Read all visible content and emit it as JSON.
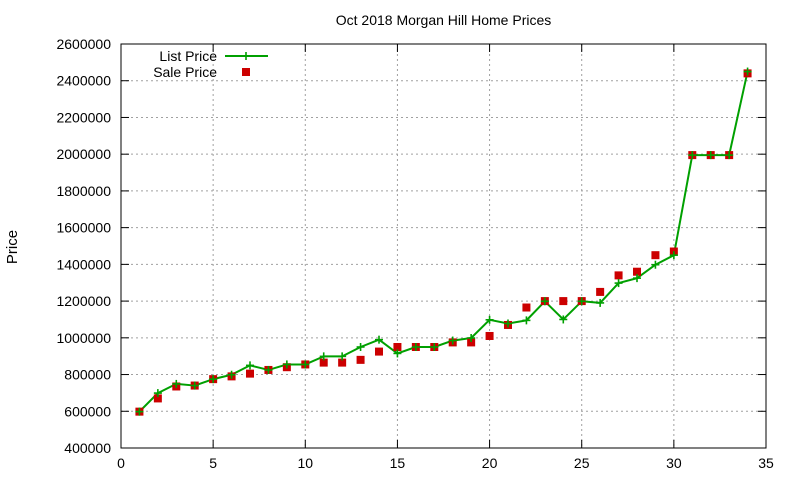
{
  "chart_data": {
    "type": "line",
    "title": "Oct 2018 Morgan Hill Home Prices",
    "xlabel": "",
    "ylabel": "Price",
    "xlim": [
      0,
      35
    ],
    "ylim": [
      400000,
      2600000
    ],
    "xticks": [
      0,
      5,
      10,
      15,
      20,
      25,
      30,
      35
    ],
    "yticks": [
      400000,
      600000,
      800000,
      1000000,
      1200000,
      1400000,
      1600000,
      1800000,
      2000000,
      2200000,
      2400000,
      2600000
    ],
    "grid": true,
    "legend_position": "top-left",
    "colors": {
      "list": "#00a000",
      "sale": "#cc0000"
    },
    "series": [
      {
        "name": "List Price",
        "style": "line-points",
        "x": [
          1,
          2,
          3,
          4,
          5,
          6,
          7,
          8,
          9,
          10,
          11,
          12,
          13,
          14,
          15,
          16,
          17,
          18,
          19,
          20,
          21,
          22,
          23,
          24,
          25,
          26,
          27,
          28,
          29,
          30,
          31,
          32,
          33,
          34
        ],
        "y": [
          598000,
          699000,
          749000,
          740000,
          775000,
          799000,
          850000,
          825000,
          855000,
          855000,
          899000,
          899000,
          950000,
          990000,
          915000,
          950000,
          950000,
          985000,
          999000,
          1098000,
          1078000,
          1095000,
          1199000,
          1100000,
          1199000,
          1190000,
          1298000,
          1325000,
          1398000,
          1450000,
          1995000,
          1995000,
          1995000,
          2450000
        ]
      },
      {
        "name": "Sale Price",
        "style": "points",
        "x": [
          1,
          2,
          3,
          4,
          5,
          6,
          7,
          8,
          9,
          10,
          11,
          12,
          13,
          14,
          15,
          16,
          17,
          18,
          19,
          20,
          21,
          22,
          23,
          24,
          25,
          26,
          27,
          28,
          29,
          30,
          31,
          32,
          33,
          34
        ],
        "y": [
          598000,
          670000,
          735000,
          740000,
          775000,
          790000,
          805000,
          825000,
          840000,
          855000,
          865000,
          865000,
          880000,
          925000,
          950000,
          950000,
          950000,
          975000,
          975000,
          1010000,
          1070000,
          1165000,
          1200000,
          1200000,
          1200000,
          1250000,
          1340000,
          1360000,
          1450000,
          1470000,
          1995000,
          1995000,
          1995000,
          2440000
        ]
      }
    ]
  }
}
